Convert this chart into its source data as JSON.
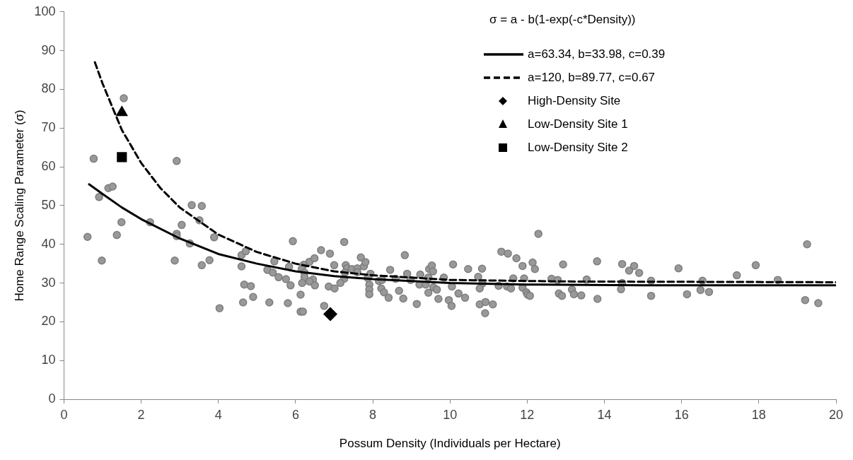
{
  "chart_data": {
    "type": "scatter",
    "xlabel": "Possum Density (Individuals per Hectare)",
    "ylabel": "Home Range Scaling Parameter (σ)",
    "legend_title": "σ = a - b(1-exp(-c*Density))",
    "legend": "top right",
    "grid": false,
    "xlim": [
      0,
      20
    ],
    "xticks": [
      0,
      2,
      4,
      6,
      8,
      10,
      12,
      14,
      16,
      18,
      20
    ],
    "ylim": [
      0,
      100
    ],
    "yticks": [
      0,
      10,
      20,
      30,
      40,
      50,
      60,
      70,
      80,
      90,
      100
    ],
    "series": [
      {
        "color": "#999999",
        "marker": "circle",
        "x": [
          0.77,
          2.92,
          1.15,
          1.26,
          0.91,
          1.49,
          2.23,
          3.05,
          2.92,
          2.92,
          3.31,
          3.57,
          3.51,
          0.61,
          1.37,
          3.89,
          3.26,
          0.98,
          2.87,
          3.57,
          3.77,
          4.6,
          4.71,
          4.6,
          4.67,
          4.64,
          4.03,
          1.55,
          5.93,
          7.26,
          6.66,
          6.89,
          5.45,
          6.36,
          6.49,
          6.21,
          5.83,
          7.0,
          7.3,
          7.33,
          7.46,
          7.6,
          7.6,
          7.77,
          7.81,
          7.69,
          6.16,
          6.23,
          5.27,
          5.41,
          5.56,
          5.75,
          6.23,
          6.45,
          6.36,
          6.17,
          6.5,
          5.87,
          7.28,
          7.26,
          7.16,
          6.86,
          7.01,
          4.84,
          4.9,
          5.32,
          5.8,
          6.13,
          6.13,
          6.19,
          6.74,
          7.94,
          7.87,
          7.91,
          7.91,
          7.91,
          8.16,
          8.24,
          8.22,
          8.29,
          8.41,
          8.45,
          8.59,
          8.68,
          8.79,
          8.83,
          8.89,
          8.98,
          9.14,
          9.23,
          9.21,
          9.37,
          9.44,
          9.44,
          9.46,
          9.53,
          9.56,
          9.57,
          9.66,
          9.7,
          9.84,
          12.29,
          11.33,
          11.5,
          11.72,
          10.08,
          10.47,
          10.83,
          11.88,
          12.14,
          12.2,
          12.93,
          13.81,
          14.46,
          14.77,
          14.64,
          14.9,
          10.73,
          10.84,
          10.05,
          10.22,
          10.39,
          9.97,
          10.04,
          10.77,
          10.77,
          10.92,
          11.11,
          10.91,
          11.26,
          11.48,
          11.58,
          11.64,
          11.92,
          11.88,
          11.98,
          12.01,
          12.07,
          12.63,
          12.79,
          12.82,
          12.9,
          13.16,
          13.21,
          13.4,
          13.54,
          13.82,
          14.46,
          14.43,
          15.21,
          15.21,
          15.92,
          16.14,
          16.54,
          16.49,
          16.71,
          17.43,
          17.92,
          18.49,
          19.25,
          19.2,
          19.54
        ],
        "values": [
          62.1,
          61.5,
          54.5,
          54.9,
          52.2,
          45.7,
          45.7,
          45.0,
          42.7,
          42.1,
          50.1,
          49.9,
          46.2,
          41.9,
          42.4,
          41.8,
          40.2,
          35.8,
          35.8,
          34.6,
          35.9,
          37.2,
          38.2,
          34.3,
          29.6,
          25.0,
          23.5,
          77.7,
          40.8,
          40.6,
          38.5,
          37.6,
          35.6,
          35.5,
          36.4,
          34.7,
          34.2,
          34.6,
          34.6,
          33.8,
          33.6,
          33.8,
          32.8,
          34.3,
          35.4,
          36.6,
          33.6,
          32.7,
          33.4,
          32.7,
          31.5,
          31.0,
          31.5,
          30.9,
          30.4,
          30.0,
          29.4,
          29.4,
          32.7,
          31.1,
          30.0,
          29.1,
          28.6,
          29.2,
          26.4,
          25.0,
          24.8,
          27.0,
          22.6,
          22.6,
          24.1,
          32.4,
          31.3,
          29.6,
          28.3,
          27.1,
          30.5,
          30.8,
          28.6,
          27.6,
          26.2,
          33.4,
          31.1,
          28.0,
          26.0,
          37.2,
          32.4,
          30.8,
          24.6,
          32.2,
          29.6,
          29.6,
          31.4,
          27.5,
          33.6,
          34.5,
          33.0,
          28.9,
          28.3,
          25.9,
          31.4,
          42.7,
          38.1,
          37.6,
          36.4,
          34.8,
          33.6,
          33.7,
          34.4,
          35.3,
          33.6,
          34.8,
          35.6,
          34.9,
          34.4,
          33.2,
          32.6,
          31.6,
          29.9,
          29.1,
          27.3,
          26.2,
          25.6,
          24.1,
          28.6,
          24.5,
          25.1,
          24.5,
          22.2,
          29.3,
          29.1,
          28.6,
          31.2,
          31.2,
          28.8,
          27.6,
          27.0,
          26.7,
          31.1,
          30.8,
          27.3,
          26.7,
          28.3,
          27.1,
          26.8,
          30.9,
          25.9,
          30.0,
          28.4,
          30.6,
          26.7,
          33.8,
          27.1,
          30.6,
          28.2,
          27.7,
          32.0,
          34.6,
          30.8,
          40.0,
          25.6,
          24.8
        ]
      },
      {
        "type": "line",
        "name": "a=63.34, b=33.98, c=0.39",
        "color": "#000000",
        "line_style": "solid",
        "marker": "none",
        "x": [
          0.65,
          1,
          1.5,
          2,
          3,
          4,
          5,
          6,
          7,
          8,
          10,
          12,
          15,
          20
        ],
        "values": [
          55.5,
          53,
          49.5,
          46.5,
          41.5,
          37.5,
          35,
          33,
          31.8,
          31,
          30,
          29.6,
          29.4,
          29.4
        ]
      },
      {
        "type": "line",
        "name": "a=120, b=89.77, c=0.67",
        "color": "#000000",
        "line_style": "dashed",
        "marker": "none",
        "x": [
          0.8,
          1,
          1.5,
          2,
          2.5,
          3,
          4,
          5,
          6,
          7,
          8,
          10,
          13,
          20
        ],
        "values": [
          87,
          81.5,
          69.5,
          61,
          54.5,
          49.5,
          42.5,
          38,
          35,
          33,
          32,
          30.8,
          30.4,
          30.2
        ]
      },
      {
        "name": "High-Density Site",
        "color": "#000000",
        "marker": "diamond",
        "x": [
          6.9
        ],
        "values": [
          22
        ]
      },
      {
        "name": "Low-Density Site 1",
        "color": "#000000",
        "marker": "triangle",
        "x": [
          1.5
        ],
        "values": [
          74
        ]
      },
      {
        "name": "Low-Density Site 2",
        "color": "#000000",
        "marker": "square",
        "x": [
          1.5
        ],
        "values": [
          62.5
        ]
      }
    ]
  }
}
